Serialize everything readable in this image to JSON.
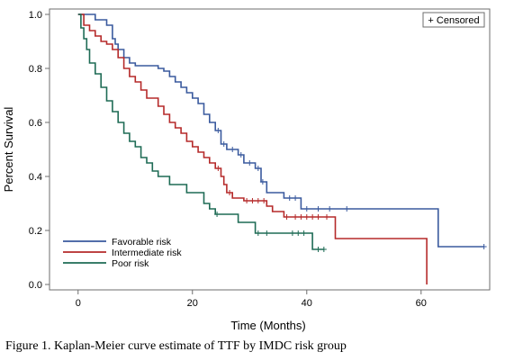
{
  "caption": "Figure 1. Kaplan-Meier curve estimate of TTF by IMDC risk group",
  "chart_data": {
    "type": "line",
    "step": true,
    "xlabel": "Time (Months)",
    "ylabel": "Percent Survival",
    "xlim": [
      -5,
      72
    ],
    "ylim": [
      -0.02,
      1.02
    ],
    "xticks": [
      0,
      20,
      40,
      60
    ],
    "yticks": [
      0.0,
      0.2,
      0.4,
      0.6,
      0.8,
      1.0
    ],
    "grid": false,
    "censor_legend": "+ Censored",
    "censor_legend_position": "top-right",
    "legend_position": "bottom-left",
    "series": [
      {
        "name": "Favorable risk",
        "color": "#3a5a9e",
        "points": [
          [
            0,
            1.0
          ],
          [
            3,
            1.0
          ],
          [
            3,
            0.98
          ],
          [
            5,
            0.98
          ],
          [
            5,
            0.96
          ],
          [
            6,
            0.96
          ],
          [
            6,
            0.91
          ],
          [
            6.5,
            0.91
          ],
          [
            6.5,
            0.89
          ],
          [
            7,
            0.89
          ],
          [
            7,
            0.87
          ],
          [
            8,
            0.87
          ],
          [
            8,
            0.84
          ],
          [
            9,
            0.84
          ],
          [
            9,
            0.82
          ],
          [
            10,
            0.82
          ],
          [
            10,
            0.81
          ],
          [
            14,
            0.81
          ],
          [
            14,
            0.8
          ],
          [
            15,
            0.8
          ],
          [
            15,
            0.79
          ],
          [
            16,
            0.79
          ],
          [
            16,
            0.77
          ],
          [
            17,
            0.77
          ],
          [
            17,
            0.75
          ],
          [
            18,
            0.75
          ],
          [
            18,
            0.73
          ],
          [
            19,
            0.73
          ],
          [
            19,
            0.71
          ],
          [
            20,
            0.71
          ],
          [
            20,
            0.69
          ],
          [
            21,
            0.69
          ],
          [
            21,
            0.67
          ],
          [
            22,
            0.67
          ],
          [
            22,
            0.63
          ],
          [
            23,
            0.63
          ],
          [
            23,
            0.6
          ],
          [
            24,
            0.6
          ],
          [
            24,
            0.57
          ],
          [
            25,
            0.57
          ],
          [
            25,
            0.52
          ],
          [
            26,
            0.52
          ],
          [
            26,
            0.5
          ],
          [
            28,
            0.5
          ],
          [
            28,
            0.48
          ],
          [
            29,
            0.48
          ],
          [
            29,
            0.45
          ],
          [
            31,
            0.45
          ],
          [
            31,
            0.43
          ],
          [
            32,
            0.43
          ],
          [
            32,
            0.38
          ],
          [
            33,
            0.38
          ],
          [
            33,
            0.34
          ],
          [
            36,
            0.34
          ],
          [
            36,
            0.32
          ],
          [
            39,
            0.32
          ],
          [
            39,
            0.28
          ],
          [
            63,
            0.28
          ],
          [
            63,
            0.14
          ],
          [
            71,
            0.14
          ]
        ],
        "censored": [
          [
            24.5,
            0.57
          ],
          [
            25.5,
            0.52
          ],
          [
            27,
            0.5
          ],
          [
            28.5,
            0.48
          ],
          [
            30,
            0.45
          ],
          [
            31.5,
            0.43
          ],
          [
            32.3,
            0.38
          ],
          [
            37,
            0.32
          ],
          [
            38,
            0.32
          ],
          [
            40,
            0.28
          ],
          [
            42,
            0.28
          ],
          [
            44,
            0.28
          ],
          [
            47,
            0.28
          ],
          [
            71,
            0.14
          ]
        ]
      },
      {
        "name": "Intermediate risk",
        "color": "#b52a2a",
        "points": [
          [
            0,
            1.0
          ],
          [
            1,
            1.0
          ],
          [
            1,
            0.96
          ],
          [
            2,
            0.96
          ],
          [
            2,
            0.94
          ],
          [
            3,
            0.94
          ],
          [
            3,
            0.92
          ],
          [
            4,
            0.92
          ],
          [
            4,
            0.9
          ],
          [
            5,
            0.9
          ],
          [
            5,
            0.89
          ],
          [
            6,
            0.89
          ],
          [
            6,
            0.87
          ],
          [
            7,
            0.87
          ],
          [
            7,
            0.84
          ],
          [
            8,
            0.84
          ],
          [
            8,
            0.8
          ],
          [
            9,
            0.8
          ],
          [
            9,
            0.77
          ],
          [
            10,
            0.77
          ],
          [
            10,
            0.75
          ],
          [
            11,
            0.75
          ],
          [
            11,
            0.72
          ],
          [
            12,
            0.72
          ],
          [
            12,
            0.69
          ],
          [
            14,
            0.69
          ],
          [
            14,
            0.66
          ],
          [
            15,
            0.66
          ],
          [
            15,
            0.63
          ],
          [
            16,
            0.63
          ],
          [
            16,
            0.6
          ],
          [
            17,
            0.6
          ],
          [
            17,
            0.58
          ],
          [
            18,
            0.58
          ],
          [
            18,
            0.56
          ],
          [
            19,
            0.56
          ],
          [
            19,
            0.53
          ],
          [
            20,
            0.53
          ],
          [
            20,
            0.51
          ],
          [
            21,
            0.51
          ],
          [
            21,
            0.49
          ],
          [
            22,
            0.49
          ],
          [
            22,
            0.47
          ],
          [
            23,
            0.47
          ],
          [
            23,
            0.45
          ],
          [
            24,
            0.45
          ],
          [
            24,
            0.43
          ],
          [
            25,
            0.43
          ],
          [
            25,
            0.4
          ],
          [
            25.5,
            0.4
          ],
          [
            25.5,
            0.37
          ],
          [
            26,
            0.37
          ],
          [
            26,
            0.34
          ],
          [
            27,
            0.34
          ],
          [
            27,
            0.32
          ],
          [
            29,
            0.32
          ],
          [
            29,
            0.31
          ],
          [
            33,
            0.31
          ],
          [
            33,
            0.29
          ],
          [
            34,
            0.29
          ],
          [
            34,
            0.27
          ],
          [
            36,
            0.27
          ],
          [
            36,
            0.25
          ],
          [
            45,
            0.25
          ],
          [
            45,
            0.17
          ],
          [
            61,
            0.17
          ],
          [
            61,
            0.0
          ]
        ],
        "censored": [
          [
            24.5,
            0.43
          ],
          [
            26.5,
            0.34
          ],
          [
            29.5,
            0.31
          ],
          [
            30.5,
            0.31
          ],
          [
            31.5,
            0.31
          ],
          [
            32.5,
            0.31
          ],
          [
            36.5,
            0.25
          ],
          [
            38,
            0.25
          ],
          [
            39,
            0.25
          ],
          [
            40,
            0.25
          ],
          [
            41,
            0.25
          ],
          [
            42,
            0.25
          ],
          [
            43.5,
            0.25
          ]
        ]
      },
      {
        "name": "Poor risk",
        "color": "#1e6b55",
        "points": [
          [
            0,
            1.0
          ],
          [
            0.5,
            1.0
          ],
          [
            0.5,
            0.95
          ],
          [
            1,
            0.95
          ],
          [
            1,
            0.91
          ],
          [
            1.5,
            0.91
          ],
          [
            1.5,
            0.87
          ],
          [
            2,
            0.87
          ],
          [
            2,
            0.82
          ],
          [
            3,
            0.82
          ],
          [
            3,
            0.78
          ],
          [
            4,
            0.78
          ],
          [
            4,
            0.73
          ],
          [
            5,
            0.73
          ],
          [
            5,
            0.68
          ],
          [
            6,
            0.68
          ],
          [
            6,
            0.64
          ],
          [
            7,
            0.64
          ],
          [
            7,
            0.6
          ],
          [
            8,
            0.6
          ],
          [
            8,
            0.56
          ],
          [
            9,
            0.56
          ],
          [
            9,
            0.53
          ],
          [
            10,
            0.53
          ],
          [
            10,
            0.51
          ],
          [
            11,
            0.51
          ],
          [
            11,
            0.47
          ],
          [
            12,
            0.47
          ],
          [
            12,
            0.45
          ],
          [
            13,
            0.45
          ],
          [
            13,
            0.42
          ],
          [
            14,
            0.42
          ],
          [
            14,
            0.4
          ],
          [
            16,
            0.4
          ],
          [
            16,
            0.37
          ],
          [
            19,
            0.37
          ],
          [
            19,
            0.34
          ],
          [
            22,
            0.34
          ],
          [
            22,
            0.3
          ],
          [
            23,
            0.3
          ],
          [
            23,
            0.28
          ],
          [
            24,
            0.28
          ],
          [
            24,
            0.26
          ],
          [
            28,
            0.26
          ],
          [
            28,
            0.23
          ],
          [
            31,
            0.23
          ],
          [
            31,
            0.19
          ],
          [
            41,
            0.19
          ],
          [
            41,
            0.13
          ],
          [
            43,
            0.13
          ]
        ],
        "censored": [
          [
            24.3,
            0.26
          ],
          [
            31.5,
            0.19
          ],
          [
            33,
            0.19
          ],
          [
            37.5,
            0.19
          ],
          [
            38.5,
            0.19
          ],
          [
            39.5,
            0.19
          ],
          [
            42,
            0.13
          ],
          [
            43,
            0.13
          ]
        ]
      }
    ]
  }
}
